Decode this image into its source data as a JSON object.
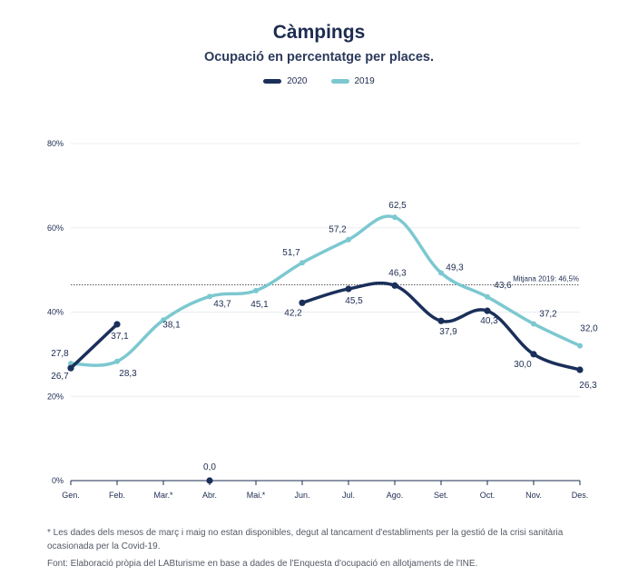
{
  "chart_data": {
    "type": "line",
    "title": "Càmpings",
    "subtitle": "Ocupació en percentatge per places.",
    "categories": [
      "Gen.",
      "Feb.",
      "Mar.*",
      "Abr.",
      "Mai.*",
      "Jun.",
      "Jul.",
      "Ago.",
      "Set.",
      "Oct.",
      "Nov.",
      "Des."
    ],
    "ylim": [
      0,
      80
    ],
    "yticks": [
      "0%",
      "20%",
      "40%",
      "60%",
      "80%"
    ],
    "grid": true,
    "legend_position": "top-center",
    "series": [
      {
        "name": "2020",
        "color": "#1a2f5a",
        "values": [
          26.7,
          37.1,
          null,
          0.0,
          null,
          42.2,
          45.5,
          46.3,
          37.9,
          40.3,
          30.0,
          26.3
        ],
        "labels": [
          "26,7",
          "37,1",
          "",
          "0,0",
          "",
          "42,2",
          "45,5",
          "46,3",
          "37,9",
          "40,3",
          "30,0",
          "26,3"
        ]
      },
      {
        "name": "2019",
        "color": "#7cc8d0",
        "values": [
          27.8,
          28.3,
          38.1,
          43.7,
          45.1,
          51.7,
          57.2,
          62.5,
          49.3,
          43.6,
          37.2,
          32.0
        ],
        "labels": [
          "27,8",
          "28,3",
          "38,1",
          "43,7",
          "45,1",
          "51,7",
          "57,2",
          "62,5",
          "49,3",
          "43,6",
          "37,2",
          "32,0"
        ]
      }
    ],
    "reference_line": {
      "value": 46.5,
      "label": "Mitjana 2019: 46,5%"
    }
  },
  "notes": {
    "footnote": "* Les dades dels mesos de març i maig no estan disponibles, degut al tancament d'establiments per la gestió de la crisi sanitària ocasionada per la Covid-19.",
    "source": "Font: Elaboració pròpia del LABturisme en base a dades de l'Enquesta d'ocupació en allotjaments de l'INE."
  }
}
